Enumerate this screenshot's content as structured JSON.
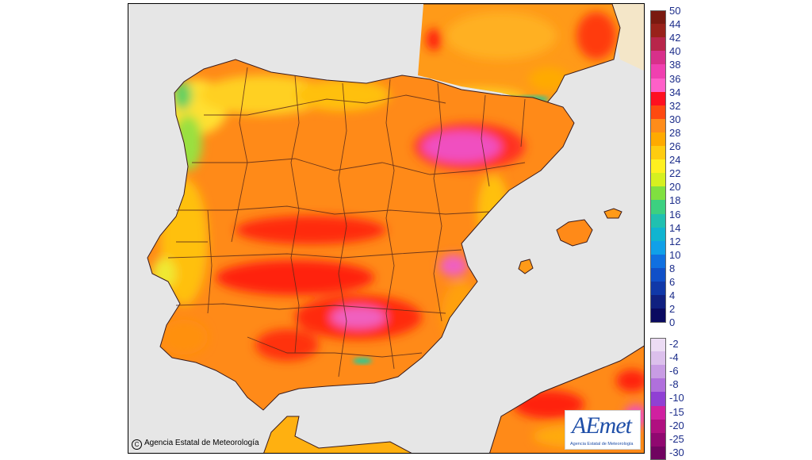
{
  "map": {
    "copyright": "Agencia Estatal de Meteorología",
    "copyright_symbol": "C",
    "logo_text": "AEmet",
    "logo_subtext": "Agencia Estatal de Meteorología",
    "background_color": "#e6e6e6",
    "border_color": "#3a1a1a"
  },
  "legend": {
    "top_block": [
      {
        "label": "50",
        "color": "#7a1a10"
      },
      {
        "label": "44",
        "color": "#99221a"
      },
      {
        "label": "42",
        "color": "#b8264a"
      },
      {
        "label": "40",
        "color": "#d8308a"
      },
      {
        "label": "38",
        "color": "#f040b0"
      },
      {
        "label": "36",
        "color": "#ff60c8"
      },
      {
        "label": "34",
        "color": "#ff1020"
      },
      {
        "label": "32",
        "color": "#ff4a10"
      },
      {
        "label": "30",
        "color": "#ff8c1a"
      },
      {
        "label": "28",
        "color": "#ffaa00"
      },
      {
        "label": "26",
        "color": "#ffcc10"
      },
      {
        "label": "24",
        "color": "#fff020"
      },
      {
        "label": "22",
        "color": "#d6f020"
      },
      {
        "label": "20",
        "color": "#80e040"
      },
      {
        "label": "18",
        "color": "#3cd080"
      },
      {
        "label": "16",
        "color": "#20c0b0"
      },
      {
        "label": "14",
        "color": "#10b4d0"
      },
      {
        "label": "12",
        "color": "#10a0e8"
      },
      {
        "label": "10",
        "color": "#1070e0"
      },
      {
        "label": "8",
        "color": "#1050c8"
      },
      {
        "label": "6",
        "color": "#1038a8"
      },
      {
        "label": "4",
        "color": "#102080"
      },
      {
        "label": "2",
        "color": "#0a0a60"
      }
    ],
    "zero_label": "0",
    "bottom_block": [
      {
        "label": "-2",
        "color": "#ecdcf4"
      },
      {
        "label": "-4",
        "color": "#dcc0ec"
      },
      {
        "label": "-6",
        "color": "#c89ce4"
      },
      {
        "label": "-8",
        "color": "#b070dc"
      },
      {
        "label": "-10",
        "color": "#9040d4"
      },
      {
        "label": "-15",
        "color": "#d020a0"
      },
      {
        "label": "-20",
        "color": "#b01080"
      },
      {
        "label": "-25",
        "color": "#900870"
      },
      {
        "label": "-30",
        "color": "#700460"
      }
    ]
  }
}
